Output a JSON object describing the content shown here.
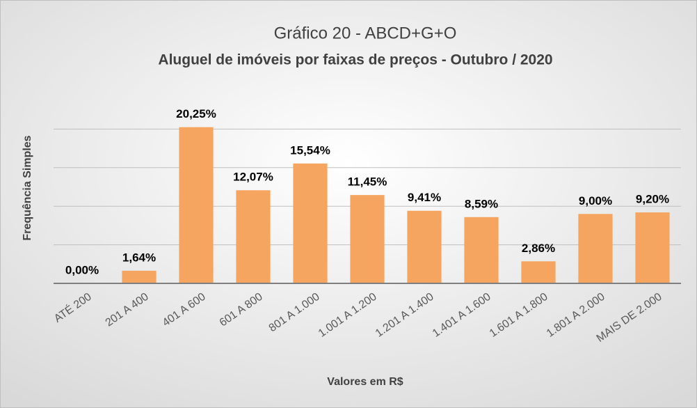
{
  "chart_data": {
    "type": "bar",
    "title": "Gráfico 20 - ABCD+G+O",
    "subtitle": "Aluguel de imóveis por faixas de preços - Outubro / 2020",
    "x_label": "Valores em R$",
    "y_label": "Frequência Simples",
    "categories": [
      "ATÉ 200",
      "201 A 400",
      "401 A 600",
      "601 A 800",
      "801 A 1.000",
      "1.001 A 1.200",
      "1.201 A 1.400",
      "1.401 A 1.600",
      "1.601 A 1.800",
      "1.801 A 2.000",
      "MAIS DE 2.000"
    ],
    "values": [
      0,
      1.64,
      20.25,
      12.07,
      15.54,
      11.45,
      9.41,
      8.59,
      2.86,
      9.0,
      9.2
    ],
    "value_labels": [
      "0,00%",
      "1,64%",
      "20,25%",
      "12,07%",
      "15,54%",
      "11,45%",
      "9,41%",
      "8,59%",
      "2,86%",
      "9,00%",
      "9,20%"
    ],
    "color": "#f5a55f",
    "ylim": [
      0,
      25
    ],
    "yticks": [
      0,
      5,
      10,
      15,
      20
    ],
    "grid": true
  }
}
